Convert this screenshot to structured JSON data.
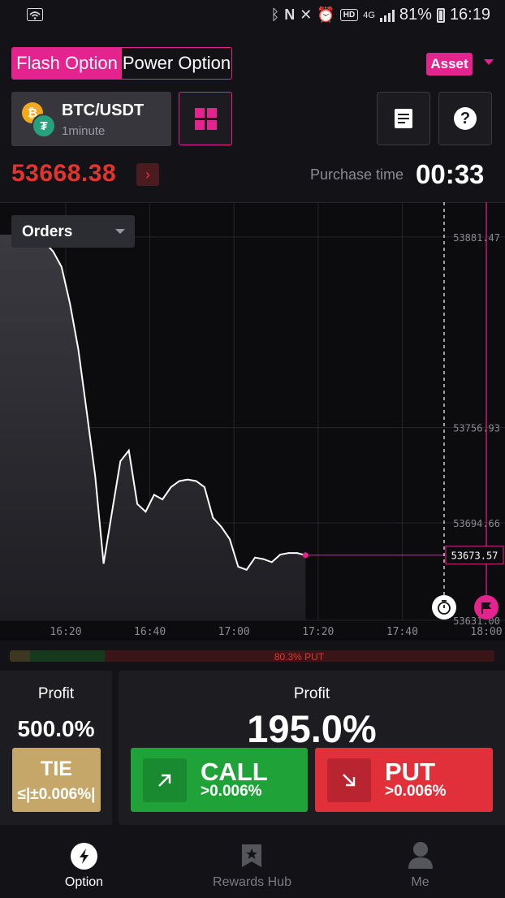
{
  "status_bar": {
    "battery": "81%",
    "time": "16:19",
    "network": "4G",
    "hd": "HD"
  },
  "mode_tabs": [
    {
      "label": "Flash Option",
      "active": true
    },
    {
      "label": "Power Option",
      "active": false
    }
  ],
  "asset_button": "Asset",
  "pair": {
    "name": "BTC/USDT",
    "interval": "1minute"
  },
  "price": {
    "current": "53668.38",
    "direction": "down"
  },
  "purchase": {
    "label": "Purchase time",
    "time": "00:33"
  },
  "orders": {
    "label": "Orders"
  },
  "chart_data": {
    "type": "area",
    "title": "",
    "xlabel": "",
    "ylabel": "",
    "x_ticks": [
      "16:20",
      "16:40",
      "17:00",
      "17:20",
      "17:40",
      "18:00"
    ],
    "y_ticks": [
      "53881.47",
      "53756.93",
      "53694.66",
      "53631.00"
    ],
    "current_value_label": "53673.57",
    "series": [
      {
        "x": [
          "16:13",
          "16:15",
          "16:17",
          "16:19",
          "16:21",
          "16:23",
          "16:25",
          "16:27",
          "16:29",
          "16:31",
          "16:33",
          "16:35",
          "16:37",
          "16:39",
          "16:41",
          "16:43",
          "16:45",
          "16:47",
          "16:49",
          "16:51",
          "16:53",
          "16:55",
          "16:57",
          "16:59",
          "17:01",
          "17:03",
          "17:05",
          "17:07",
          "17:09",
          "17:11",
          "17:13",
          "17:15",
          "17:17"
        ],
        "y": [
          53883,
          53878,
          53872,
          53862,
          53838,
          53808,
          53767,
          53725,
          53668,
          53702,
          53735,
          53742,
          53707,
          53702,
          53713,
          53710,
          53718,
          53722,
          53723,
          53722,
          53718,
          53698,
          53692,
          53684,
          53666,
          53664,
          53672,
          53671,
          53669,
          53674,
          53675,
          53675,
          53673.57
        ]
      }
    ],
    "ylim": [
      53631,
      53900
    ],
    "grid": true,
    "colors": {
      "line": "#ffffff",
      "marker": "#e4238f"
    }
  },
  "sentiment": {
    "put_percent": 80.3,
    "label": "80.3% PUT"
  },
  "tie": {
    "profit_label": "Profit",
    "profit": "500.0%",
    "label": "TIE",
    "condition": "≤|±0.006%|"
  },
  "trade": {
    "profit_label": "Profit",
    "profit": "195.0%"
  },
  "call": {
    "label": "CALL",
    "threshold": ">0.006%"
  },
  "put": {
    "label": "PUT",
    "threshold": ">0.006%"
  },
  "nav": [
    {
      "label": "Option",
      "icon": "option-icon",
      "active": true
    },
    {
      "label": "Rewards Hub",
      "icon": "rewards-icon",
      "active": false
    },
    {
      "label": "Me",
      "icon": "profile-icon",
      "active": false
    }
  ],
  "colors": {
    "accent": "#e4238f",
    "up": "#1fa339",
    "down": "#e1303a",
    "tie": "#c5a869"
  }
}
